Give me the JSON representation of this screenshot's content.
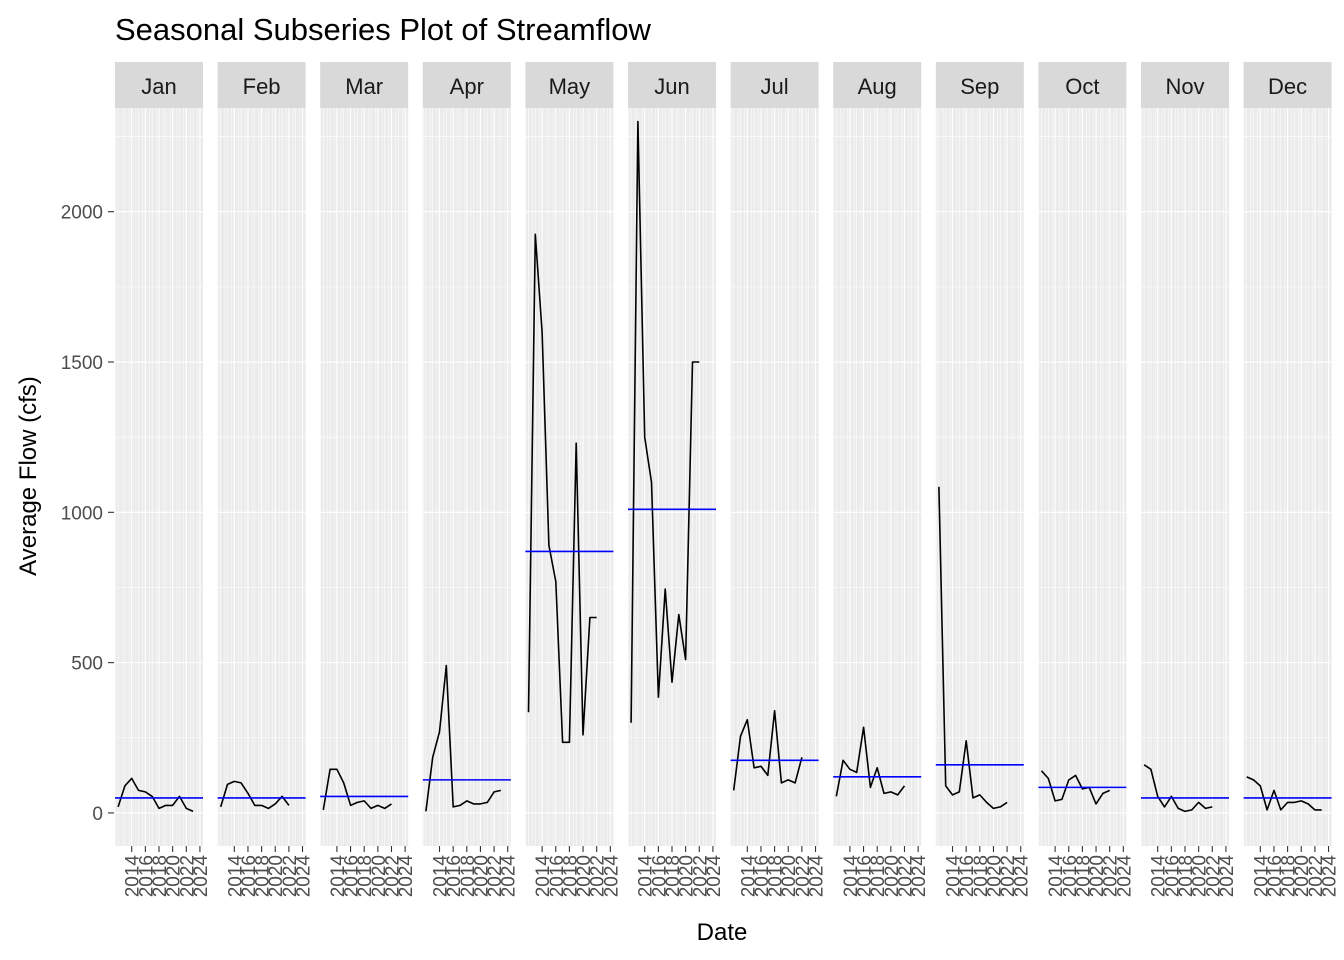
{
  "chart_data": {
    "type": "line",
    "title": "Seasonal Subseries Plot of Streamflow",
    "xlabel": "Date",
    "ylabel": "Average Flow (cfs)",
    "ylim": [
      -110,
      2345
    ],
    "y_ticks": [
      0,
      500,
      1000,
      1500,
      2000
    ],
    "x_ticks": [
      "2014",
      "2016",
      "2018",
      "2020",
      "2022",
      "2024"
    ],
    "x_tick_values": [
      2014,
      2016,
      2018,
      2020,
      2022,
      2024
    ],
    "x_range": [
      2011.55,
      2024.45
    ],
    "grid": true,
    "mean_line_color": "#0000ff",
    "series_line_color": "#000000",
    "panels": [
      {
        "month": "Jan",
        "years": [
          2012,
          2013,
          2014,
          2015,
          2016,
          2017,
          2018,
          2019,
          2020,
          2021,
          2022,
          2023
        ],
        "values": [
          20,
          90,
          115,
          75,
          70,
          55,
          15,
          25,
          25,
          55,
          15,
          5
        ],
        "mean": 50
      },
      {
        "month": "Feb",
        "years": [
          2012,
          2013,
          2014,
          2015,
          2016,
          2017,
          2018,
          2019,
          2020,
          2021,
          2022
        ],
        "values": [
          20,
          95,
          105,
          100,
          65,
          25,
          25,
          15,
          30,
          55,
          25
        ],
        "mean": 50
      },
      {
        "month": "Mar",
        "years": [
          2012,
          2013,
          2014,
          2015,
          2016,
          2017,
          2018,
          2019,
          2020,
          2021,
          2022
        ],
        "values": [
          10,
          145,
          145,
          100,
          25,
          35,
          40,
          15,
          25,
          15,
          30
        ],
        "mean": 55
      },
      {
        "month": "Apr",
        "years": [
          2012,
          2013,
          2014,
          2015,
          2016,
          2017,
          2018,
          2019,
          2020,
          2021,
          2022,
          2023
        ],
        "values": [
          5,
          185,
          270,
          490,
          20,
          25,
          40,
          30,
          30,
          35,
          70,
          75
        ],
        "mean": 110
      },
      {
        "month": "May",
        "years": [
          2012,
          2013,
          2014,
          2015,
          2016,
          2017,
          2018,
          2019,
          2020,
          2021,
          2022
        ],
        "values": [
          335,
          1925,
          1600,
          890,
          770,
          235,
          235,
          1230,
          260,
          650,
          650
        ],
        "mean": 870
      },
      {
        "month": "Jun",
        "years": [
          2012,
          2013,
          2014,
          2015,
          2016,
          2017,
          2018,
          2019,
          2020,
          2021,
          2022
        ],
        "values": [
          300,
          2300,
          1250,
          1100,
          385,
          745,
          435,
          660,
          510,
          1500,
          1500
        ],
        "mean": 1010
      },
      {
        "month": "Jul",
        "years": [
          2012,
          2013,
          2014,
          2015,
          2016,
          2017,
          2018,
          2019,
          2020,
          2021,
          2022
        ],
        "values": [
          75,
          255,
          310,
          150,
          155,
          125,
          340,
          100,
          110,
          100,
          185
        ],
        "mean": 175
      },
      {
        "month": "Aug",
        "years": [
          2012,
          2013,
          2014,
          2015,
          2016,
          2017,
          2018,
          2019,
          2020,
          2021,
          2022
        ],
        "values": [
          55,
          175,
          145,
          135,
          285,
          85,
          150,
          65,
          70,
          60,
          90
        ],
        "mean": 120
      },
      {
        "month": "Sep",
        "years": [
          2012,
          2013,
          2014,
          2015,
          2016,
          2017,
          2018,
          2019,
          2020,
          2021,
          2022
        ],
        "values": [
          1085,
          90,
          60,
          70,
          240,
          50,
          60,
          35,
          15,
          20,
          35
        ],
        "mean": 160
      },
      {
        "month": "Oct",
        "years": [
          2012,
          2013,
          2014,
          2015,
          2016,
          2017,
          2018,
          2019,
          2020,
          2021,
          2022
        ],
        "values": [
          140,
          115,
          40,
          45,
          110,
          125,
          80,
          85,
          30,
          65,
          75
        ],
        "mean": 85
      },
      {
        "month": "Nov",
        "years": [
          2012,
          2013,
          2014,
          2015,
          2016,
          2017,
          2018,
          2019,
          2020,
          2021,
          2022
        ],
        "values": [
          160,
          145,
          55,
          20,
          55,
          15,
          5,
          10,
          35,
          15,
          20
        ],
        "mean": 50
      },
      {
        "month": "Dec",
        "years": [
          2012,
          2013,
          2014,
          2015,
          2016,
          2017,
          2018,
          2019,
          2020,
          2021,
          2022,
          2023
        ],
        "values": [
          120,
          110,
          90,
          10,
          75,
          10,
          35,
          35,
          40,
          30,
          10,
          10
        ],
        "mean": 50
      }
    ]
  }
}
